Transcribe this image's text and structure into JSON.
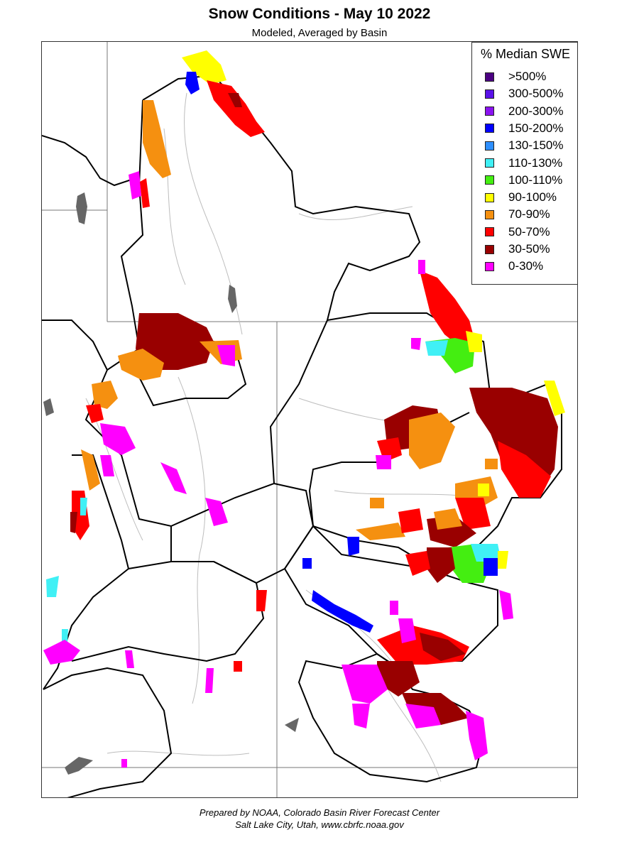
{
  "header": {
    "title": "Snow Conditions - May 10 2022",
    "subtitle": "Modeled, Averaged by Basin"
  },
  "legend": {
    "title": "% Median SWE",
    "items": [
      {
        "label": ">500%",
        "color": "#4b0082"
      },
      {
        "label": "300-500%",
        "color": "#5a11e8"
      },
      {
        "label": "200-300%",
        "color": "#8a12f0"
      },
      {
        "label": "150-200%",
        "color": "#0000ff"
      },
      {
        "label": "130-150%",
        "color": "#2e8fff"
      },
      {
        "label": "110-130%",
        "color": "#40f0f5"
      },
      {
        "label": "100-110%",
        "color": "#44ee11"
      },
      {
        "label": "90-100%",
        "color": "#ffff00"
      },
      {
        "label": "70-90%",
        "color": "#f59010"
      },
      {
        "label": "50-70%",
        "color": "#ff0000"
      },
      {
        "label": "30-50%",
        "color": "#990000"
      },
      {
        "label": "0-30%",
        "color": "#ff00ff"
      }
    ]
  },
  "footer": {
    "line1": "Prepared by NOAA, Colorado Basin River Forecast Center",
    "line2": "Salt Lake City, Utah, www.cbrfc.noaa.gov"
  },
  "map": {
    "lake_color": "#666666",
    "state_line_color": "#777777",
    "basin_outline_color": "#000000",
    "river_color": "#b8b8b8"
  }
}
